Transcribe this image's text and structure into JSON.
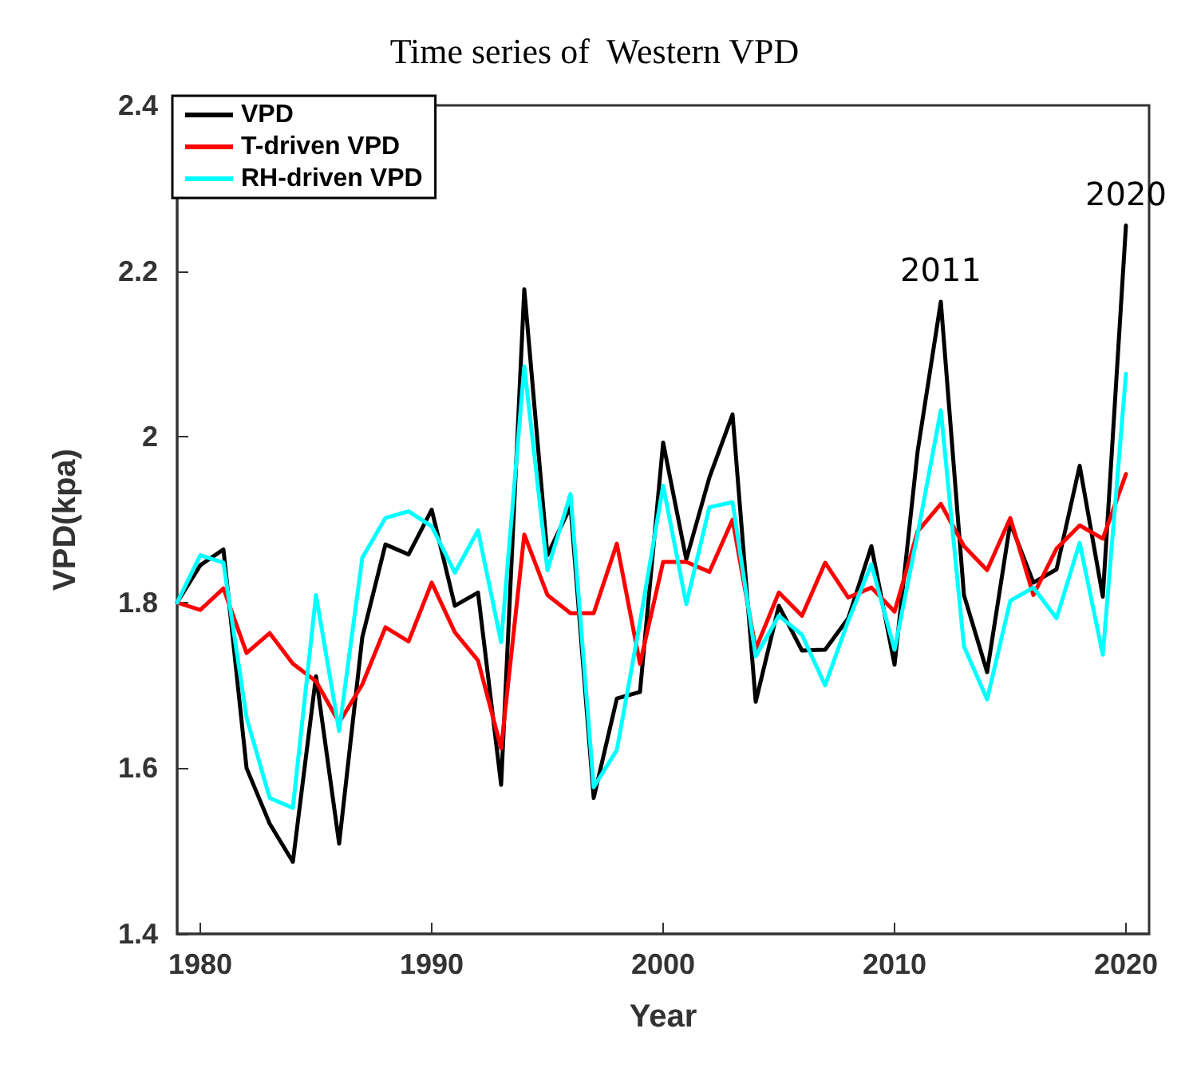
{
  "chart_data": {
    "type": "line",
    "title": "Time series of  Western VPD",
    "xlabel": "Year",
    "ylabel": "VPD(kpa)",
    "x": [
      1979,
      1980,
      1981,
      1982,
      1983,
      1984,
      1985,
      1986,
      1987,
      1988,
      1989,
      1990,
      1991,
      1992,
      1993,
      1994,
      1995,
      1996,
      1997,
      1998,
      1999,
      2000,
      2001,
      2002,
      2003,
      2004,
      2005,
      2006,
      2007,
      2008,
      2009,
      2010,
      2011,
      2012,
      2013,
      2014,
      2015,
      2016,
      2017,
      2018,
      2019,
      2020
    ],
    "series": [
      {
        "name": "VPD",
        "color": "#000000",
        "values": [
          1.8,
          1.845,
          1.864,
          1.6,
          1.533,
          1.487,
          1.711,
          1.509,
          1.758,
          1.87,
          1.858,
          1.912,
          1.796,
          1.812,
          1.58,
          2.178,
          1.857,
          1.916,
          1.564,
          1.684,
          1.692,
          1.993,
          1.852,
          1.951,
          2.027,
          1.68,
          1.796,
          1.742,
          1.743,
          1.781,
          1.868,
          1.725,
          1.983,
          2.163,
          1.809,
          1.716,
          1.896,
          1.824,
          1.84,
          1.965,
          1.807,
          2.255
        ]
      },
      {
        "name": "T-driven VPD",
        "color": "#ff0000",
        "values": [
          1.8,
          1.791,
          1.817,
          1.739,
          1.763,
          1.726,
          1.705,
          1.655,
          1.701,
          1.77,
          1.753,
          1.824,
          1.764,
          1.73,
          1.624,
          1.882,
          1.809,
          1.787,
          1.787,
          1.871,
          1.726,
          1.849,
          1.849,
          1.837,
          1.9,
          1.744,
          1.812,
          1.784,
          1.848,
          1.806,
          1.818,
          1.789,
          1.886,
          1.919,
          1.868,
          1.839,
          1.902,
          1.809,
          1.865,
          1.893,
          1.877,
          1.955
        ]
      },
      {
        "name": "RH-driven VPD",
        "color": "#00ffff",
        "values": [
          1.8,
          1.857,
          1.848,
          1.661,
          1.564,
          1.552,
          1.809,
          1.645,
          1.854,
          1.902,
          1.91,
          1.892,
          1.836,
          1.887,
          1.752,
          2.085,
          1.839,
          1.931,
          1.577,
          1.622,
          1.776,
          1.941,
          1.798,
          1.915,
          1.921,
          1.735,
          1.784,
          1.761,
          1.7,
          1.778,
          1.846,
          1.743,
          1.883,
          2.032,
          1.747,
          1.683,
          1.802,
          1.818,
          1.781,
          1.872,
          1.737,
          2.076
        ]
      }
    ],
    "xlim": [
      1979,
      2021
    ],
    "xticks": [
      1980,
      1990,
      2000,
      2010,
      2020
    ],
    "ylim": [
      1.4,
      2.4
    ],
    "yticks": [
      1.4,
      1.6,
      1.8,
      2,
      2.2,
      2.4
    ],
    "annotations": [
      {
        "text": "2011",
        "x": 2012,
        "y": 2.163
      },
      {
        "text": "2020",
        "x": 2020,
        "y": 2.255
      }
    ],
    "legend": "top left",
    "grid": false,
    "marker": "none",
    "line_style": "solid"
  }
}
